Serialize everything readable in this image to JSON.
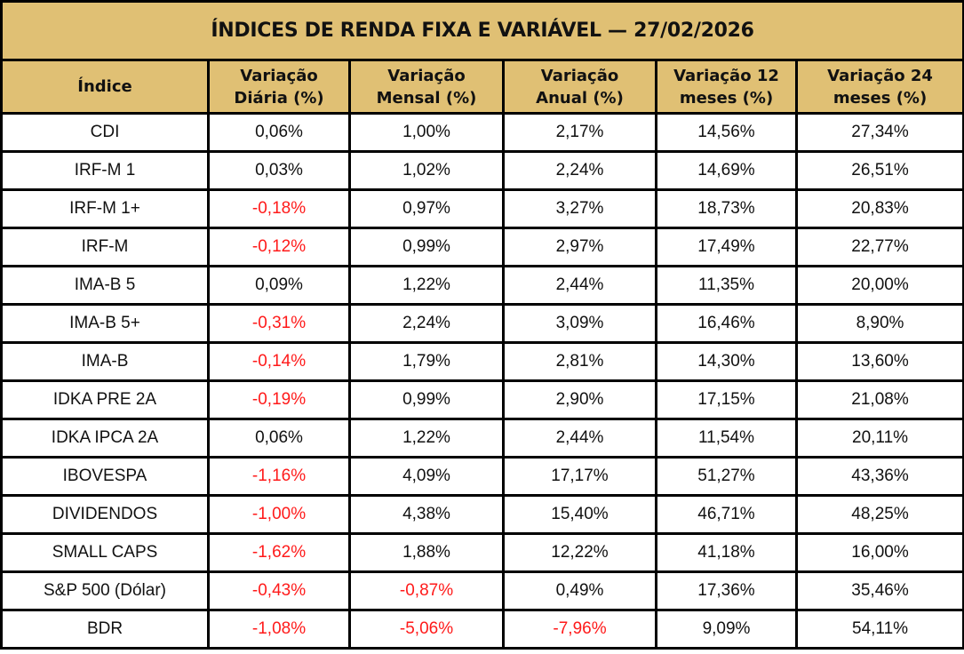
{
  "title": "ÍNDICES DE RENDA FIXA E VARIÁVEL — 27/02/2026",
  "colors": {
    "header_bg": "#e0c074",
    "negative": "#ff1a1a",
    "positive": "#111111",
    "border": "#000000"
  },
  "columns": [
    {
      "line1": "Índice",
      "line2": ""
    },
    {
      "line1": "Variação",
      "line2": "Diária (%)"
    },
    {
      "line1": "Variação",
      "line2": "Mensal (%)"
    },
    {
      "line1": "Variação",
      "line2": "Anual (%)"
    },
    {
      "line1": "Variação 12",
      "line2": "meses (%)"
    },
    {
      "line1": "Variação 24",
      "line2": "meses (%)"
    }
  ],
  "rows": [
    {
      "index": "CDI",
      "daily": "0,06%",
      "monthly": "1,00%",
      "annual": "2,17%",
      "m12": "14,56%",
      "m24": "27,34%"
    },
    {
      "index": "IRF-M 1",
      "daily": "0,03%",
      "monthly": "1,02%",
      "annual": "2,24%",
      "m12": "14,69%",
      "m24": "26,51%"
    },
    {
      "index": "IRF-M 1+",
      "daily": "-0,18%",
      "monthly": "0,97%",
      "annual": "3,27%",
      "m12": "18,73%",
      "m24": "20,83%"
    },
    {
      "index": "IRF-M",
      "daily": "-0,12%",
      "monthly": "0,99%",
      "annual": "2,97%",
      "m12": "17,49%",
      "m24": "22,77%"
    },
    {
      "index": "IMA-B 5",
      "daily": "0,09%",
      "monthly": "1,22%",
      "annual": "2,44%",
      "m12": "11,35%",
      "m24": "20,00%"
    },
    {
      "index": "IMA-B 5+",
      "daily": "-0,31%",
      "monthly": "2,24%",
      "annual": "3,09%",
      "m12": "16,46%",
      "m24": "8,90%"
    },
    {
      "index": "IMA-B",
      "daily": "-0,14%",
      "monthly": "1,79%",
      "annual": "2,81%",
      "m12": "14,30%",
      "m24": "13,60%"
    },
    {
      "index": "IDKA PRE 2A",
      "daily": "-0,19%",
      "monthly": "0,99%",
      "annual": "2,90%",
      "m12": "17,15%",
      "m24": "21,08%"
    },
    {
      "index": "IDKA IPCA 2A",
      "daily": "0,06%",
      "monthly": "1,22%",
      "annual": "2,44%",
      "m12": "11,54%",
      "m24": "20,11%"
    },
    {
      "index": "IBOVESPA",
      "daily": "-1,16%",
      "monthly": "4,09%",
      "annual": "17,17%",
      "m12": "51,27%",
      "m24": "43,36%"
    },
    {
      "index": "DIVIDENDOS",
      "daily": "-1,00%",
      "monthly": "4,38%",
      "annual": "15,40%",
      "m12": "46,71%",
      "m24": "48,25%"
    },
    {
      "index": "SMALL CAPS",
      "daily": "-1,62%",
      "monthly": "1,88%",
      "annual": "12,22%",
      "m12": "41,18%",
      "m24": "16,00%"
    },
    {
      "index": "S&P 500 (Dólar)",
      "daily": "-0,43%",
      "monthly": "-0,87%",
      "annual": "0,49%",
      "m12": "17,36%",
      "m24": "35,46%"
    },
    {
      "index": "BDR",
      "daily": "-1,08%",
      "monthly": "-5,06%",
      "annual": "-7,96%",
      "m12": "9,09%",
      "m24": "54,11%"
    }
  ]
}
